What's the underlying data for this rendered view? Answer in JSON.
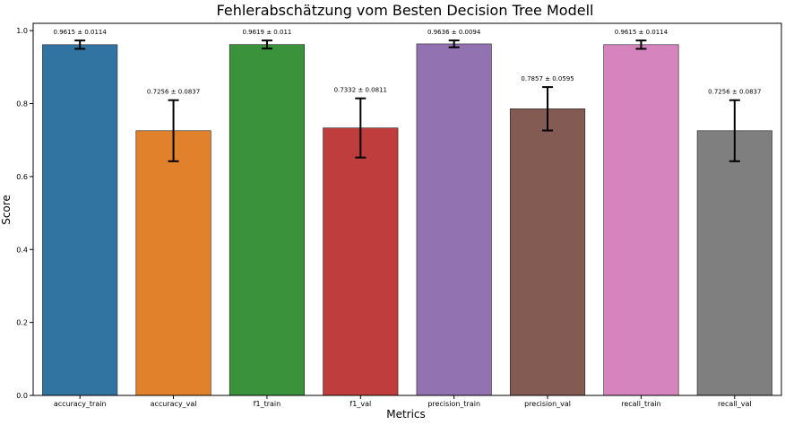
{
  "chart_data": {
    "type": "bar",
    "title": "Fehlerabschätzung vom Besten Decision Tree Modell",
    "xlabel": "Metrics",
    "ylabel": "Score",
    "ylim": [
      0,
      1.02
    ],
    "yticks": [
      "0.0",
      "0.2",
      "0.4",
      "0.6",
      "0.8",
      "1.0"
    ],
    "grid": false,
    "categories": [
      "accuracy_train",
      "accuracy_val",
      "f1_train",
      "f1_val",
      "precision_train",
      "precision_val",
      "recall_train",
      "recall_val"
    ],
    "values": [
      0.9615,
      0.7256,
      0.9619,
      0.7332,
      0.9636,
      0.7857,
      0.9615,
      0.7256
    ],
    "errors": [
      0.0114,
      0.0837,
      0.011,
      0.0811,
      0.0094,
      0.0595,
      0.0114,
      0.0837
    ],
    "data_labels": [
      "0.9615 ± 0.0114",
      "0.7256 ± 0.0837",
      "0.9619 ± 0.011",
      "0.7332 ± 0.0811",
      "0.9636 ± 0.0094",
      "0.7857 ± 0.0595",
      "0.9615 ± 0.0114",
      "0.7256 ± 0.0837"
    ],
    "colors": [
      "#3274a1",
      "#e1812c",
      "#3a923a",
      "#c03d3e",
      "#9372b2",
      "#845b53",
      "#d684bd",
      "#7f7f7f"
    ]
  }
}
